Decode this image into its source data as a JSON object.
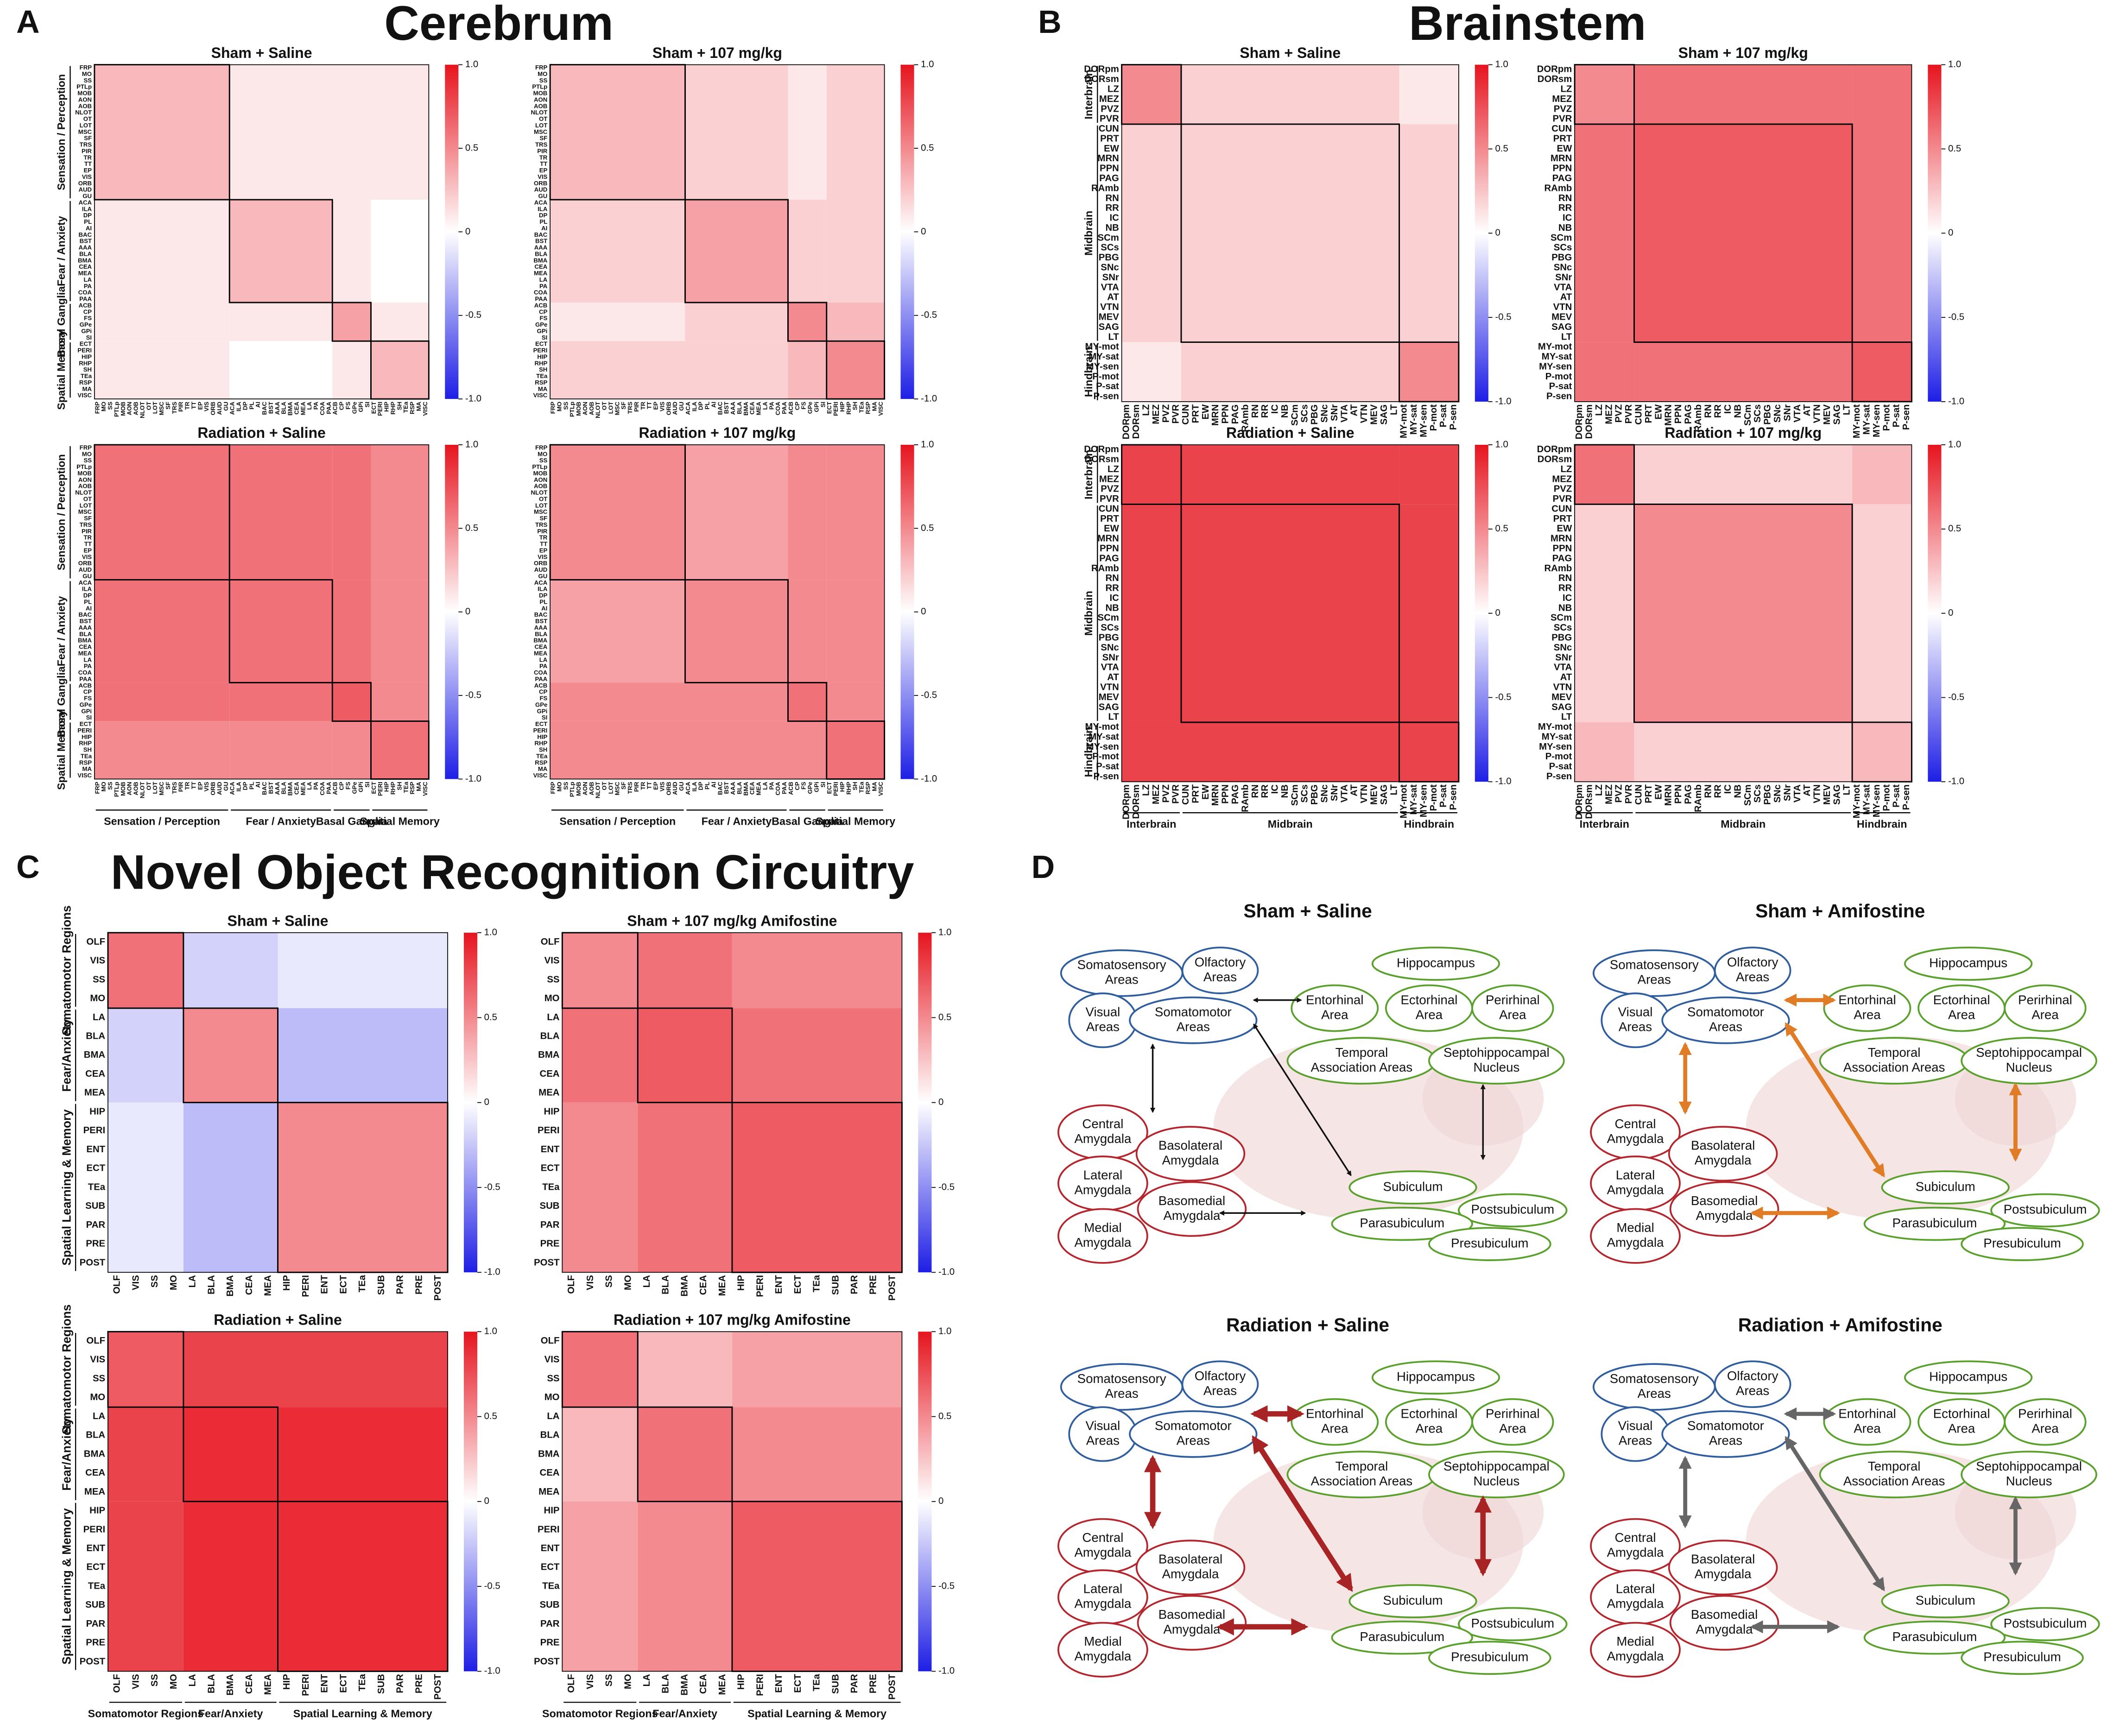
{
  "panels": {
    "A": {
      "letter": "A",
      "title": "Cerebrum",
      "groups": [
        {
          "name": "Sensation / Perception",
          "labels": [
            "FRP",
            "MO",
            "SS",
            "PTLp",
            "MOB",
            "AON",
            "AOB",
            "NLOT",
            "OT",
            "LOT",
            "MSC",
            "SF",
            "TRS",
            "PIR",
            "TR",
            "TT",
            "EP",
            "VIS",
            "ORB",
            "AUD",
            "GU"
          ]
        },
        {
          "name": "Fear / Anxiety",
          "labels": [
            "ACA",
            "ILA",
            "DP",
            "PL",
            "AI",
            "BAC",
            "BST",
            "AAA",
            "BLA",
            "BMA",
            "CEA",
            "MEA",
            "LA",
            "PA",
            "COA",
            "PAA"
          ]
        },
        {
          "name": "Basal Ganglia",
          "labels": [
            "ACB",
            "CP",
            "FS",
            "GPe",
            "GPi",
            "SI"
          ]
        },
        {
          "name": "Spatial Memory",
          "labels": [
            "ECT",
            "PERI",
            "HIP",
            "RHP",
            "SH",
            "TEa",
            "RSP",
            "MA",
            "VISC"
          ]
        }
      ],
      "matrices": [
        {
          "title": "Sham + Saline",
          "blocks": [
            [
              0.3,
              0.1,
              0.1,
              0.1
            ],
            [
              0.1,
              0.3,
              0.1,
              0.0
            ],
            [
              0.1,
              0.1,
              0.4,
              0.1
            ],
            [
              0.1,
              0.0,
              0.1,
              0.3
            ]
          ]
        },
        {
          "title": "Sham + 107 mg/kg",
          "blocks": [
            [
              0.3,
              0.2,
              0.1,
              0.2
            ],
            [
              0.2,
              0.4,
              0.2,
              0.2
            ],
            [
              0.1,
              0.2,
              0.5,
              0.3
            ],
            [
              0.2,
              0.2,
              0.3,
              0.5
            ]
          ]
        },
        {
          "title": "Radiation + Saline",
          "blocks": [
            [
              0.6,
              0.6,
              0.6,
              0.5
            ],
            [
              0.6,
              0.6,
              0.6,
              0.5
            ],
            [
              0.6,
              0.6,
              0.7,
              0.5
            ],
            [
              0.5,
              0.5,
              0.5,
              0.6
            ]
          ]
        },
        {
          "title": "Radiation + 107 mg/kg",
          "blocks": [
            [
              0.5,
              0.4,
              0.5,
              0.5
            ],
            [
              0.4,
              0.5,
              0.5,
              0.5
            ],
            [
              0.5,
              0.5,
              0.6,
              0.5
            ],
            [
              0.5,
              0.5,
              0.5,
              0.6
            ]
          ]
        }
      ],
      "colorbar_ticks": [
        {
          "value": 1,
          "label": "1.0"
        },
        0.5,
        0,
        -0.5,
        {
          "value": -1,
          "label": "-1.0"
        }
      ]
    },
    "B": {
      "letter": "B",
      "title": "Brainstem",
      "groups": [
        {
          "name": "Interbrain",
          "labels": [
            "DORpm",
            "DORsm",
            "LZ",
            "MEZ",
            "PVZ",
            "PVR"
          ]
        },
        {
          "name": "Midbrain",
          "labels": [
            "CUN",
            "PRT",
            "EW",
            "MRN",
            "PPN",
            "PAG",
            "RAmb",
            "RN",
            "RR",
            "IC",
            "NB",
            "SCm",
            "SCs",
            "PBG",
            "SNc",
            "SNr",
            "VTA",
            "AT",
            "VTN",
            "MEV",
            "SAG",
            "LT"
          ]
        },
        {
          "name": "Hindbrain",
          "labels": [
            "MY-mot",
            "MY-sat",
            "MY-sen",
            "P-mot",
            "P-sat",
            "P-sen"
          ]
        }
      ],
      "matrices": [
        {
          "title": "Sham + Saline",
          "blocks": [
            [
              0.5,
              0.2,
              0.1
            ],
            [
              0.2,
              0.2,
              0.2
            ],
            [
              0.1,
              0.2,
              0.5
            ]
          ]
        },
        {
          "title": "Sham + 107 mg/kg",
          "blocks": [
            [
              0.5,
              0.6,
              0.6
            ],
            [
              0.6,
              0.7,
              0.6
            ],
            [
              0.6,
              0.6,
              0.7
            ]
          ]
        },
        {
          "title": "Radiation + Saline",
          "blocks": [
            [
              0.8,
              0.8,
              0.8
            ],
            [
              0.8,
              0.8,
              0.8
            ],
            [
              0.8,
              0.8,
              0.8
            ]
          ]
        },
        {
          "title": "Radiation + 107 mg/kg",
          "blocks": [
            [
              0.6,
              0.2,
              0.3
            ],
            [
              0.2,
              0.5,
              0.2
            ],
            [
              0.3,
              0.2,
              0.3
            ]
          ]
        }
      ],
      "colorbar_ticks": [
        {
          "value": 1,
          "label": "1.0"
        },
        0.5,
        0,
        -0.5,
        {
          "value": -1,
          "label": "-1.0"
        }
      ]
    },
    "C": {
      "letter": "C",
      "title": "Novel Object Recognition Circuitry",
      "groups": [
        {
          "name": "Somatomotor Regions",
          "labels": [
            "OLF",
            "VIS",
            "SS",
            "MO"
          ]
        },
        {
          "name": "Fear/Anxiety",
          "labels": [
            "LA",
            "BLA",
            "BMA",
            "CEA",
            "MEA"
          ]
        },
        {
          "name": "Spatial Learning & Memory",
          "labels": [
            "HIP",
            "PERI",
            "ENT",
            "ECT",
            "TEa",
            "SUB",
            "PAR",
            "PRE",
            "POST"
          ]
        }
      ],
      "matrices": [
        {
          "title": "Sham + Saline",
          "blocks": [
            [
              0.6,
              -0.2,
              -0.1
            ],
            [
              -0.2,
              0.5,
              -0.3
            ],
            [
              -0.1,
              -0.3,
              0.5
            ]
          ]
        },
        {
          "title": "Sham + 107 mg/kg Amifostine",
          "blocks": [
            [
              0.5,
              0.6,
              0.5
            ],
            [
              0.6,
              0.7,
              0.6
            ],
            [
              0.5,
              0.6,
              0.7
            ]
          ]
        },
        {
          "title": "Radiation + Saline",
          "blocks": [
            [
              0.7,
              0.8,
              0.8
            ],
            [
              0.8,
              0.9,
              0.9
            ],
            [
              0.8,
              0.9,
              0.9
            ]
          ]
        },
        {
          "title": "Radiation + 107 mg/kg Amifostine",
          "blocks": [
            [
              0.6,
              0.3,
              0.4
            ],
            [
              0.3,
              0.6,
              0.5
            ],
            [
              0.4,
              0.5,
              0.7
            ]
          ]
        }
      ],
      "colorbar_ticks": [
        {
          "value": 1,
          "label": "1.0"
        },
        0.5,
        0,
        -0.5,
        {
          "value": -1,
          "label": "-1.0"
        }
      ]
    }
  },
  "diagram": {
    "letter": "D",
    "diagrams": [
      {
        "title": "Sham + Saline",
        "arrow_color": "#111111"
      },
      {
        "title": "Sham + Amifostine",
        "arrow_color": "#e07b26"
      },
      {
        "title": "Radiation + Saline",
        "arrow_color": "#a82424"
      },
      {
        "title": "Radiation + Amifostine",
        "arrow_color": "#666666"
      }
    ],
    "nodes": [
      {
        "label": [
          "Somatosensory",
          "Areas"
        ],
        "color": "#2f5d9e"
      },
      {
        "label": [
          "Olfactory",
          "Areas"
        ],
        "color": "#2f5d9e"
      },
      {
        "label": [
          "Visual",
          "Areas"
        ],
        "color": "#2f5d9e"
      },
      {
        "label": [
          "Somatomotor",
          "Areas"
        ],
        "color": "#2f5d9e"
      },
      {
        "label": [
          "Hippocampus"
        ],
        "color": "#5aa02c"
      },
      {
        "label": [
          "Entorhinal",
          "Area"
        ],
        "color": "#5aa02c"
      },
      {
        "label": [
          "Ectorhinal",
          "Area"
        ],
        "color": "#5aa02c"
      },
      {
        "label": [
          "Perirhinal",
          "Area"
        ],
        "color": "#5aa02c"
      },
      {
        "label": [
          "Temporal",
          "Association Areas"
        ],
        "color": "#5aa02c"
      },
      {
        "label": [
          "Septohippocampal",
          "Nucleus"
        ],
        "color": "#5aa02c"
      },
      {
        "label": [
          "Central",
          "Amygdala"
        ],
        "color": "#b3262e"
      },
      {
        "label": [
          "Basolateral",
          "Amygdala"
        ],
        "color": "#b3262e"
      },
      {
        "label": [
          "Lateral",
          "Amygdala"
        ],
        "color": "#b3262e"
      },
      {
        "label": [
          "Basomedial",
          "Amygdala"
        ],
        "color": "#b3262e"
      },
      {
        "label": [
          "Medial",
          "Amygdala"
        ],
        "color": "#b3262e"
      },
      {
        "label": [
          "Subiculum"
        ],
        "color": "#5aa02c"
      },
      {
        "label": [
          "Postsubiculum"
        ],
        "color": "#5aa02c"
      },
      {
        "label": [
          "Parasubiculum"
        ],
        "color": "#5aa02c"
      },
      {
        "label": [
          "Presubiculum"
        ],
        "color": "#5aa02c"
      }
    ]
  }
}
